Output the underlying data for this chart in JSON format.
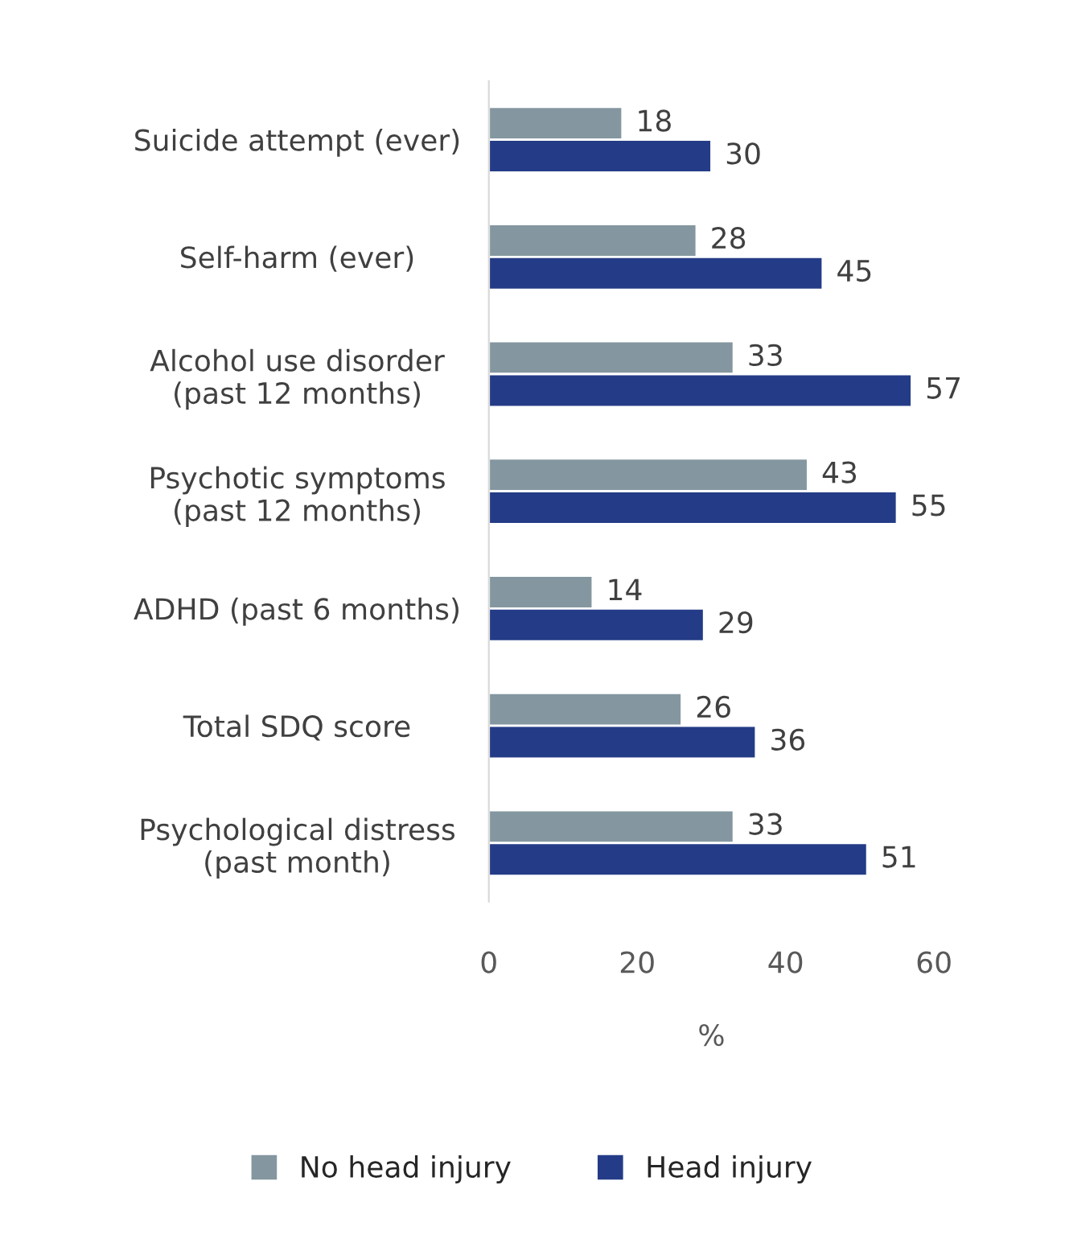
{
  "chart_data": {
    "type": "bar",
    "orientation": "horizontal",
    "xlabel": "%",
    "categories": [
      "Suicide attempt (ever)",
      "Self-harm (ever)",
      "Alcohol use disorder\n(past 12 months)",
      "Psychotic symptoms\n(past 12 months)",
      "ADHD (past 6 months)",
      "Total SDQ score",
      "Psychological distress\n(past month)"
    ],
    "series": [
      {
        "name": "No head injury",
        "color": "#8497a0",
        "values": [
          18,
          28,
          33,
          43,
          14,
          26,
          33
        ]
      },
      {
        "name": "Head injury",
        "color": "#243c87",
        "values": [
          30,
          45,
          57,
          55,
          29,
          36,
          51
        ]
      }
    ],
    "xlim": [
      0,
      60
    ],
    "xticks": [
      0,
      20,
      40,
      60
    ],
    "data_labels": true,
    "grid": false,
    "legend": "bottom"
  }
}
